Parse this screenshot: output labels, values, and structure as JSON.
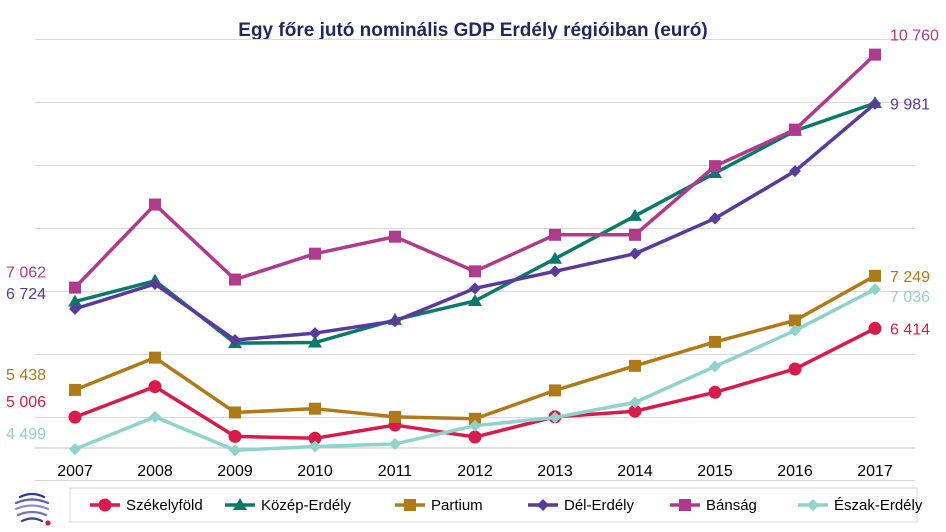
{
  "chart_data": {
    "type": "line",
    "title": "Egy főre jutó nominális  GDP Erdély régióiban  (euró)",
    "xlabel": "",
    "ylabel": "",
    "categories": [
      "2007",
      "2008",
      "2009",
      "2010",
      "2011",
      "2012",
      "2013",
      "2014",
      "2015",
      "2016",
      "2017"
    ],
    "ylim": [
      3500,
      11500
    ],
    "grid": true,
    "legend_position": "bottom",
    "series": [
      {
        "name": "Székelyföld",
        "color": "#d81b4a",
        "marker": "circle",
        "values": [
          5006,
          5490,
          4700,
          4670,
          4880,
          4690,
          5010,
          5100,
          5400,
          5770,
          6414
        ],
        "start_label": "5 006",
        "end_label": "6 414"
      },
      {
        "name": "Közép-Erdély",
        "color": "#0b7a6b",
        "marker": "triangle",
        "values": [
          6840,
          7170,
          6180,
          6190,
          6550,
          6850,
          7520,
          8200,
          8880,
          9550,
          9990
        ],
        "start_label": "",
        "end_label": ""
      },
      {
        "name": "Partium",
        "color": "#b07a18",
        "marker": "square",
        "values": [
          5438,
          5950,
          5080,
          5140,
          5010,
          4980,
          5430,
          5820,
          6200,
          6540,
          7249
        ],
        "start_label": "5 438",
        "end_label": "7 249"
      },
      {
        "name": "Dél-Erdély",
        "color": "#5a3a9a",
        "marker": "diamond",
        "values": [
          6724,
          7120,
          6230,
          6340,
          6530,
          7050,
          7320,
          7600,
          8160,
          8910,
          9981
        ],
        "start_label": "6 724",
        "end_label": "9 981"
      },
      {
        "name": "Bánság",
        "color": "#b03a8e",
        "marker": "square",
        "values": [
          7062,
          8380,
          7190,
          7600,
          7870,
          7320,
          7900,
          7900,
          8990,
          9570,
          10760
        ],
        "start_label": "7 062",
        "end_label": "10 760"
      },
      {
        "name": "Észak-Erdély",
        "color": "#8fd3cc",
        "marker": "diamond",
        "values": [
          4499,
          5010,
          4480,
          4540,
          4580,
          4870,
          5000,
          5240,
          5810,
          6380,
          7036
        ],
        "start_label": "4 499",
        "end_label": "7 036"
      }
    ]
  }
}
